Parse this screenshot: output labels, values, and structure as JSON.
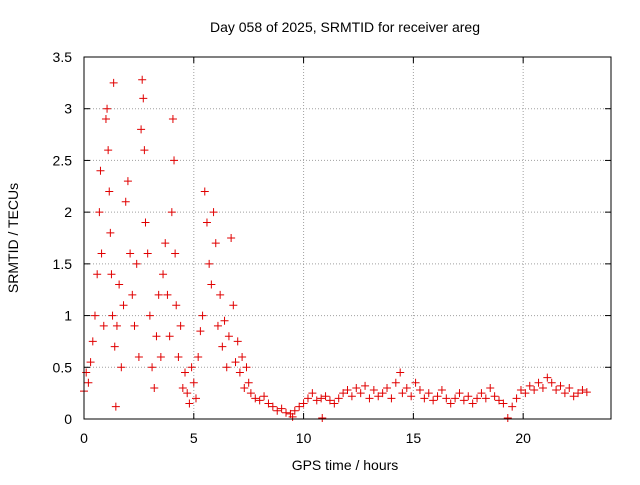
{
  "chart_data": {
    "type": "scatter",
    "title": "Day 058 of 2025, SRMTID for receiver areg",
    "xlabel": "GPS time / hours",
    "ylabel": "SRMTID / TECUs",
    "xlim": [
      0,
      24
    ],
    "ylim": [
      0,
      3.5
    ],
    "x_ticks": [
      0,
      5,
      10,
      15,
      20
    ],
    "x_tick_labels": [
      "0",
      "5",
      "10",
      "15",
      "20"
    ],
    "y_ticks": [
      0,
      0.5,
      1,
      1.5,
      2,
      2.5,
      3,
      3.5
    ],
    "y_tick_labels": [
      "0",
      "0.5",
      "1",
      "1.5",
      "2",
      "2.5",
      "3",
      "3.5"
    ],
    "grid": true,
    "marker": "plus",
    "color": "#e00000",
    "series": [
      {
        "name": "SRMTID",
        "points": [
          [
            0.0,
            0.27
          ],
          [
            0.1,
            0.45
          ],
          [
            0.2,
            0.35
          ],
          [
            0.3,
            0.55
          ],
          [
            0.4,
            0.75
          ],
          [
            0.5,
            1.0
          ],
          [
            0.6,
            1.4
          ],
          [
            0.7,
            2.0
          ],
          [
            0.75,
            2.4
          ],
          [
            0.8,
            1.6
          ],
          [
            0.9,
            0.9
          ],
          [
            1.0,
            2.9
          ],
          [
            1.05,
            3.0
          ],
          [
            1.1,
            2.6
          ],
          [
            1.15,
            2.2
          ],
          [
            1.2,
            1.8
          ],
          [
            1.25,
            1.4
          ],
          [
            1.3,
            1.0
          ],
          [
            1.35,
            3.25
          ],
          [
            1.4,
            0.7
          ],
          [
            1.45,
            0.12
          ],
          [
            1.5,
            0.9
          ],
          [
            1.6,
            1.3
          ],
          [
            1.7,
            0.5
          ],
          [
            1.8,
            1.1
          ],
          [
            1.9,
            2.1
          ],
          [
            2.0,
            2.3
          ],
          [
            2.1,
            1.6
          ],
          [
            2.2,
            1.2
          ],
          [
            2.3,
            0.9
          ],
          [
            2.4,
            1.5
          ],
          [
            2.5,
            0.6
          ],
          [
            2.6,
            2.8
          ],
          [
            2.65,
            3.28
          ],
          [
            2.7,
            3.1
          ],
          [
            2.75,
            2.6
          ],
          [
            2.8,
            1.9
          ],
          [
            2.9,
            1.6
          ],
          [
            3.0,
            1.0
          ],
          [
            3.1,
            0.5
          ],
          [
            3.2,
            0.3
          ],
          [
            3.3,
            0.8
          ],
          [
            3.4,
            1.2
          ],
          [
            3.5,
            0.6
          ],
          [
            3.6,
            1.4
          ],
          [
            3.7,
            1.7
          ],
          [
            3.8,
            1.2
          ],
          [
            3.9,
            0.8
          ],
          [
            4.0,
            2.0
          ],
          [
            4.05,
            2.9
          ],
          [
            4.1,
            2.5
          ],
          [
            4.15,
            1.6
          ],
          [
            4.2,
            1.1
          ],
          [
            4.3,
            0.6
          ],
          [
            4.4,
            0.9
          ],
          [
            4.5,
            0.3
          ],
          [
            4.6,
            0.45
          ],
          [
            4.7,
            0.25
          ],
          [
            4.8,
            0.15
          ],
          [
            4.9,
            0.5
          ],
          [
            5.0,
            0.35
          ],
          [
            5.1,
            0.2
          ],
          [
            5.2,
            0.6
          ],
          [
            5.3,
            0.85
          ],
          [
            5.4,
            1.0
          ],
          [
            5.5,
            2.2
          ],
          [
            5.6,
            1.9
          ],
          [
            5.7,
            1.5
          ],
          [
            5.8,
            1.3
          ],
          [
            5.9,
            2.0
          ],
          [
            6.0,
            1.7
          ],
          [
            6.1,
            0.9
          ],
          [
            6.2,
            1.2
          ],
          [
            6.3,
            0.7
          ],
          [
            6.4,
            0.95
          ],
          [
            6.5,
            0.5
          ],
          [
            6.6,
            0.8
          ],
          [
            6.7,
            1.75
          ],
          [
            6.8,
            1.1
          ],
          [
            6.9,
            0.55
          ],
          [
            7.0,
            0.75
          ],
          [
            7.1,
            0.45
          ],
          [
            7.2,
            0.6
          ],
          [
            7.3,
            0.3
          ],
          [
            7.4,
            0.5
          ],
          [
            7.5,
            0.35
          ],
          [
            7.6,
            0.25
          ],
          [
            7.8,
            0.2
          ],
          [
            8.0,
            0.18
          ],
          [
            8.2,
            0.22
          ],
          [
            8.4,
            0.15
          ],
          [
            8.6,
            0.12
          ],
          [
            8.8,
            0.08
          ],
          [
            9.0,
            0.1
          ],
          [
            9.2,
            0.06
          ],
          [
            9.4,
            0.05
          ],
          [
            9.5,
            0.02
          ],
          [
            9.6,
            0.08
          ],
          [
            9.8,
            0.12
          ],
          [
            10.0,
            0.15
          ],
          [
            10.2,
            0.2
          ],
          [
            10.4,
            0.25
          ],
          [
            10.6,
            0.18
          ],
          [
            10.8,
            0.2
          ],
          [
            10.85,
            0.01
          ],
          [
            11.0,
            0.22
          ],
          [
            11.2,
            0.18
          ],
          [
            11.4,
            0.15
          ],
          [
            11.6,
            0.2
          ],
          [
            11.8,
            0.25
          ],
          [
            12.0,
            0.28
          ],
          [
            12.2,
            0.22
          ],
          [
            12.4,
            0.3
          ],
          [
            12.6,
            0.25
          ],
          [
            12.8,
            0.32
          ],
          [
            13.0,
            0.2
          ],
          [
            13.2,
            0.28
          ],
          [
            13.4,
            0.22
          ],
          [
            13.6,
            0.25
          ],
          [
            13.8,
            0.3
          ],
          [
            14.0,
            0.2
          ],
          [
            14.2,
            0.35
          ],
          [
            14.4,
            0.45
          ],
          [
            14.5,
            0.25
          ],
          [
            14.7,
            0.3
          ],
          [
            14.9,
            0.22
          ],
          [
            15.1,
            0.35
          ],
          [
            15.3,
            0.28
          ],
          [
            15.5,
            0.2
          ],
          [
            15.7,
            0.25
          ],
          [
            15.9,
            0.18
          ],
          [
            16.1,
            0.22
          ],
          [
            16.3,
            0.28
          ],
          [
            16.5,
            0.2
          ],
          [
            16.7,
            0.15
          ],
          [
            16.9,
            0.2
          ],
          [
            17.1,
            0.25
          ],
          [
            17.3,
            0.18
          ],
          [
            17.5,
            0.22
          ],
          [
            17.7,
            0.15
          ],
          [
            17.9,
            0.2
          ],
          [
            18.1,
            0.25
          ],
          [
            18.3,
            0.2
          ],
          [
            18.5,
            0.3
          ],
          [
            18.7,
            0.22
          ],
          [
            18.9,
            0.18
          ],
          [
            19.1,
            0.15
          ],
          [
            19.3,
            0.01
          ],
          [
            19.5,
            0.12
          ],
          [
            19.7,
            0.2
          ],
          [
            19.9,
            0.28
          ],
          [
            20.1,
            0.25
          ],
          [
            20.3,
            0.32
          ],
          [
            20.5,
            0.28
          ],
          [
            20.7,
            0.35
          ],
          [
            20.9,
            0.3
          ],
          [
            21.1,
            0.4
          ],
          [
            21.3,
            0.35
          ],
          [
            21.5,
            0.28
          ],
          [
            21.7,
            0.32
          ],
          [
            21.9,
            0.25
          ],
          [
            22.1,
            0.3
          ],
          [
            22.3,
            0.22
          ],
          [
            22.5,
            0.25
          ],
          [
            22.7,
            0.28
          ],
          [
            22.9,
            0.26
          ]
        ]
      }
    ]
  }
}
